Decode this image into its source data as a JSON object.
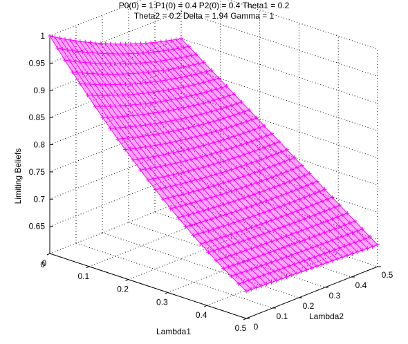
{
  "chart_data": {
    "type": "surface3d",
    "title": [
      "P0(0) = 1 P1(0) = 0.4 P2(0) = 0.4 Theta1 = 0.2",
      "Theta2 = 0.2 Delta = 1.94 Gamma = 1"
    ],
    "xlabel": "Lambda1",
    "ylabel": "Lambda2",
    "zlabel": "Limiting Beliefs",
    "xlim": [
      0,
      0.5
    ],
    "ylim": [
      0,
      0.5
    ],
    "zlim": [
      0.6,
      1.0
    ],
    "x_ticks": [
      "0",
      "0.1",
      "0.2",
      "0.3",
      "0.4",
      "0.5"
    ],
    "y_ticks": [
      "0",
      "0.1",
      "0.2",
      "0.3",
      "0.4",
      "0.5"
    ],
    "z_ticks": [
      "0.65",
      "0.7",
      "0.75",
      "0.8",
      "0.85",
      "0.9",
      "0.95",
      "1"
    ],
    "grid": true,
    "surface_color": "#ff00ff",
    "marker": "+",
    "corner_values": {
      "l1_0_l2_0": 1.0,
      "l1_0_l2_0.5": 0.9,
      "l1_0.5_l2_0": 0.65,
      "l1_0.5_l2_0.5": 0.64
    }
  }
}
